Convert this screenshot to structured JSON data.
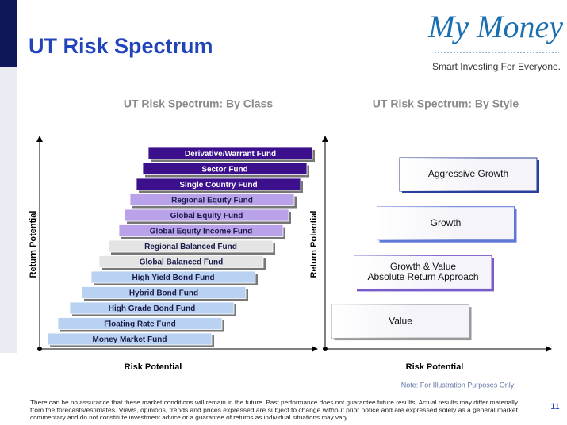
{
  "header": {
    "title": "UT Risk Spectrum",
    "logo": "My Money",
    "tagline": "Smart Investing For Everyone."
  },
  "left_panel": {
    "title": "UT Risk Spectrum: By Class",
    "y_label": "Return Potential",
    "x_label": "Risk Potential",
    "funds": [
      {
        "label": "Derivative/Warrant  Fund",
        "color": "#3c0f8c"
      },
      {
        "label": "Sector Fund",
        "color": "#3c0f8c"
      },
      {
        "label": "Single Country Fund",
        "color": "#3c0f8c"
      },
      {
        "label": "Regional Equity Fund",
        "color": "#b9a2ea"
      },
      {
        "label": "Global Equity Fund",
        "color": "#b9a2ea"
      },
      {
        "label": "Global Equity Income Fund",
        "color": "#b9a2ea"
      },
      {
        "label": "Regional Balanced Fund",
        "color": "#e4e4e4"
      },
      {
        "label": "Global Balanced Fund",
        "color": "#e4e4e4"
      },
      {
        "label": "High Yield Bond Fund",
        "color": "#bad2f2"
      },
      {
        "label": "Hybrid Bond Fund",
        "color": "#bad2f2"
      },
      {
        "label": "High Grade Bond Fund",
        "color": "#bad2f2"
      },
      {
        "label": "Floating Rate Fund",
        "color": "#bad2f2"
      },
      {
        "label": "Money Market Fund",
        "color": "#bad2f2"
      }
    ]
  },
  "right_panel": {
    "title": "UT Risk Spectrum: By Style",
    "y_label": "Return Potential",
    "x_label": "Risk Potential",
    "styles": [
      {
        "lines": [
          "Aggressive Growth"
        ],
        "color": "#2a3f9a"
      },
      {
        "lines": [
          "Growth"
        ],
        "color": "#5f78d6"
      },
      {
        "lines": [
          "Growth & Value",
          "Absolute Return Approach"
        ],
        "color": "#7a5bcc"
      },
      {
        "lines": [
          "Value"
        ],
        "color": "#9a9a9a"
      }
    ]
  },
  "note": "Note: For Illustration Purposes Only",
  "disclaimer": [
    "There can be no assurance that these market conditions will remain in the future.  Past performance does not guarantee future results.  Actual results may differ materially",
    "from the forecasts/estimates. Views, opinions, trends and prices expressed are subject to change without prior notice and are expressed solely as a general market",
    "commentary and do not constitute investment advice or a guarantee of returns as individual situations may vary."
  ],
  "page_number": "11"
}
